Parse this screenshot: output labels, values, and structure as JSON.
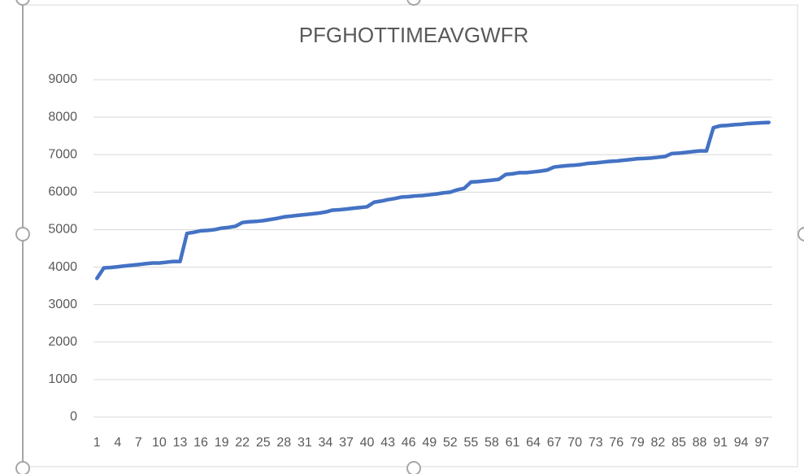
{
  "chart_data": {
    "type": "line",
    "title": "PFGHOTTIMEAVGWFR",
    "categories": [
      1,
      null,
      null,
      4,
      null,
      null,
      7,
      null,
      null,
      10,
      null,
      null,
      13,
      null,
      null,
      16,
      null,
      null,
      19,
      null,
      null,
      22,
      null,
      null,
      25,
      null,
      null,
      28,
      null,
      null,
      31,
      null,
      null,
      34,
      null,
      null,
      37,
      null,
      null,
      40,
      null,
      null,
      43,
      null,
      null,
      46,
      null,
      null,
      49,
      null,
      null,
      52,
      null,
      null,
      55,
      null,
      null,
      58,
      null,
      null,
      61,
      null,
      null,
      64,
      null,
      null,
      67,
      null,
      null,
      70,
      null,
      null,
      73,
      null,
      null,
      76,
      null,
      null,
      79,
      null,
      null,
      82,
      null,
      null,
      85,
      null,
      null,
      88,
      null,
      null,
      91,
      null,
      null,
      94,
      null,
      null,
      97,
      null
    ],
    "values": [
      3700,
      3980,
      3990,
      4010,
      4030,
      4050,
      4070,
      4090,
      4110,
      4110,
      4130,
      4150,
      4150,
      4900,
      4930,
      4970,
      4980,
      5000,
      5040,
      5060,
      5090,
      5190,
      5210,
      5220,
      5240,
      5270,
      5300,
      5340,
      5360,
      5380,
      5400,
      5420,
      5440,
      5470,
      5520,
      5530,
      5550,
      5570,
      5590,
      5610,
      5730,
      5760,
      5800,
      5830,
      5870,
      5880,
      5900,
      5910,
      5930,
      5950,
      5980,
      6000,
      6060,
      6100,
      6270,
      6280,
      6300,
      6320,
      6340,
      6470,
      6490,
      6520,
      6520,
      6540,
      6560,
      6590,
      6670,
      6690,
      6710,
      6720,
      6740,
      6770,
      6780,
      6800,
      6820,
      6830,
      6850,
      6870,
      6890,
      6900,
      6910,
      6930,
      6950,
      7030,
      7040,
      7060,
      7080,
      7100,
      7100,
      7720,
      7770,
      7780,
      7800,
      7810,
      7830,
      7840,
      7850,
      7860
    ],
    "color": "#4472c4",
    "ylim": [
      0,
      9000
    ],
    "yticks": [
      0,
      1000,
      2000,
      3000,
      4000,
      5000,
      6000,
      7000,
      8000,
      9000
    ],
    "grid": true
  }
}
